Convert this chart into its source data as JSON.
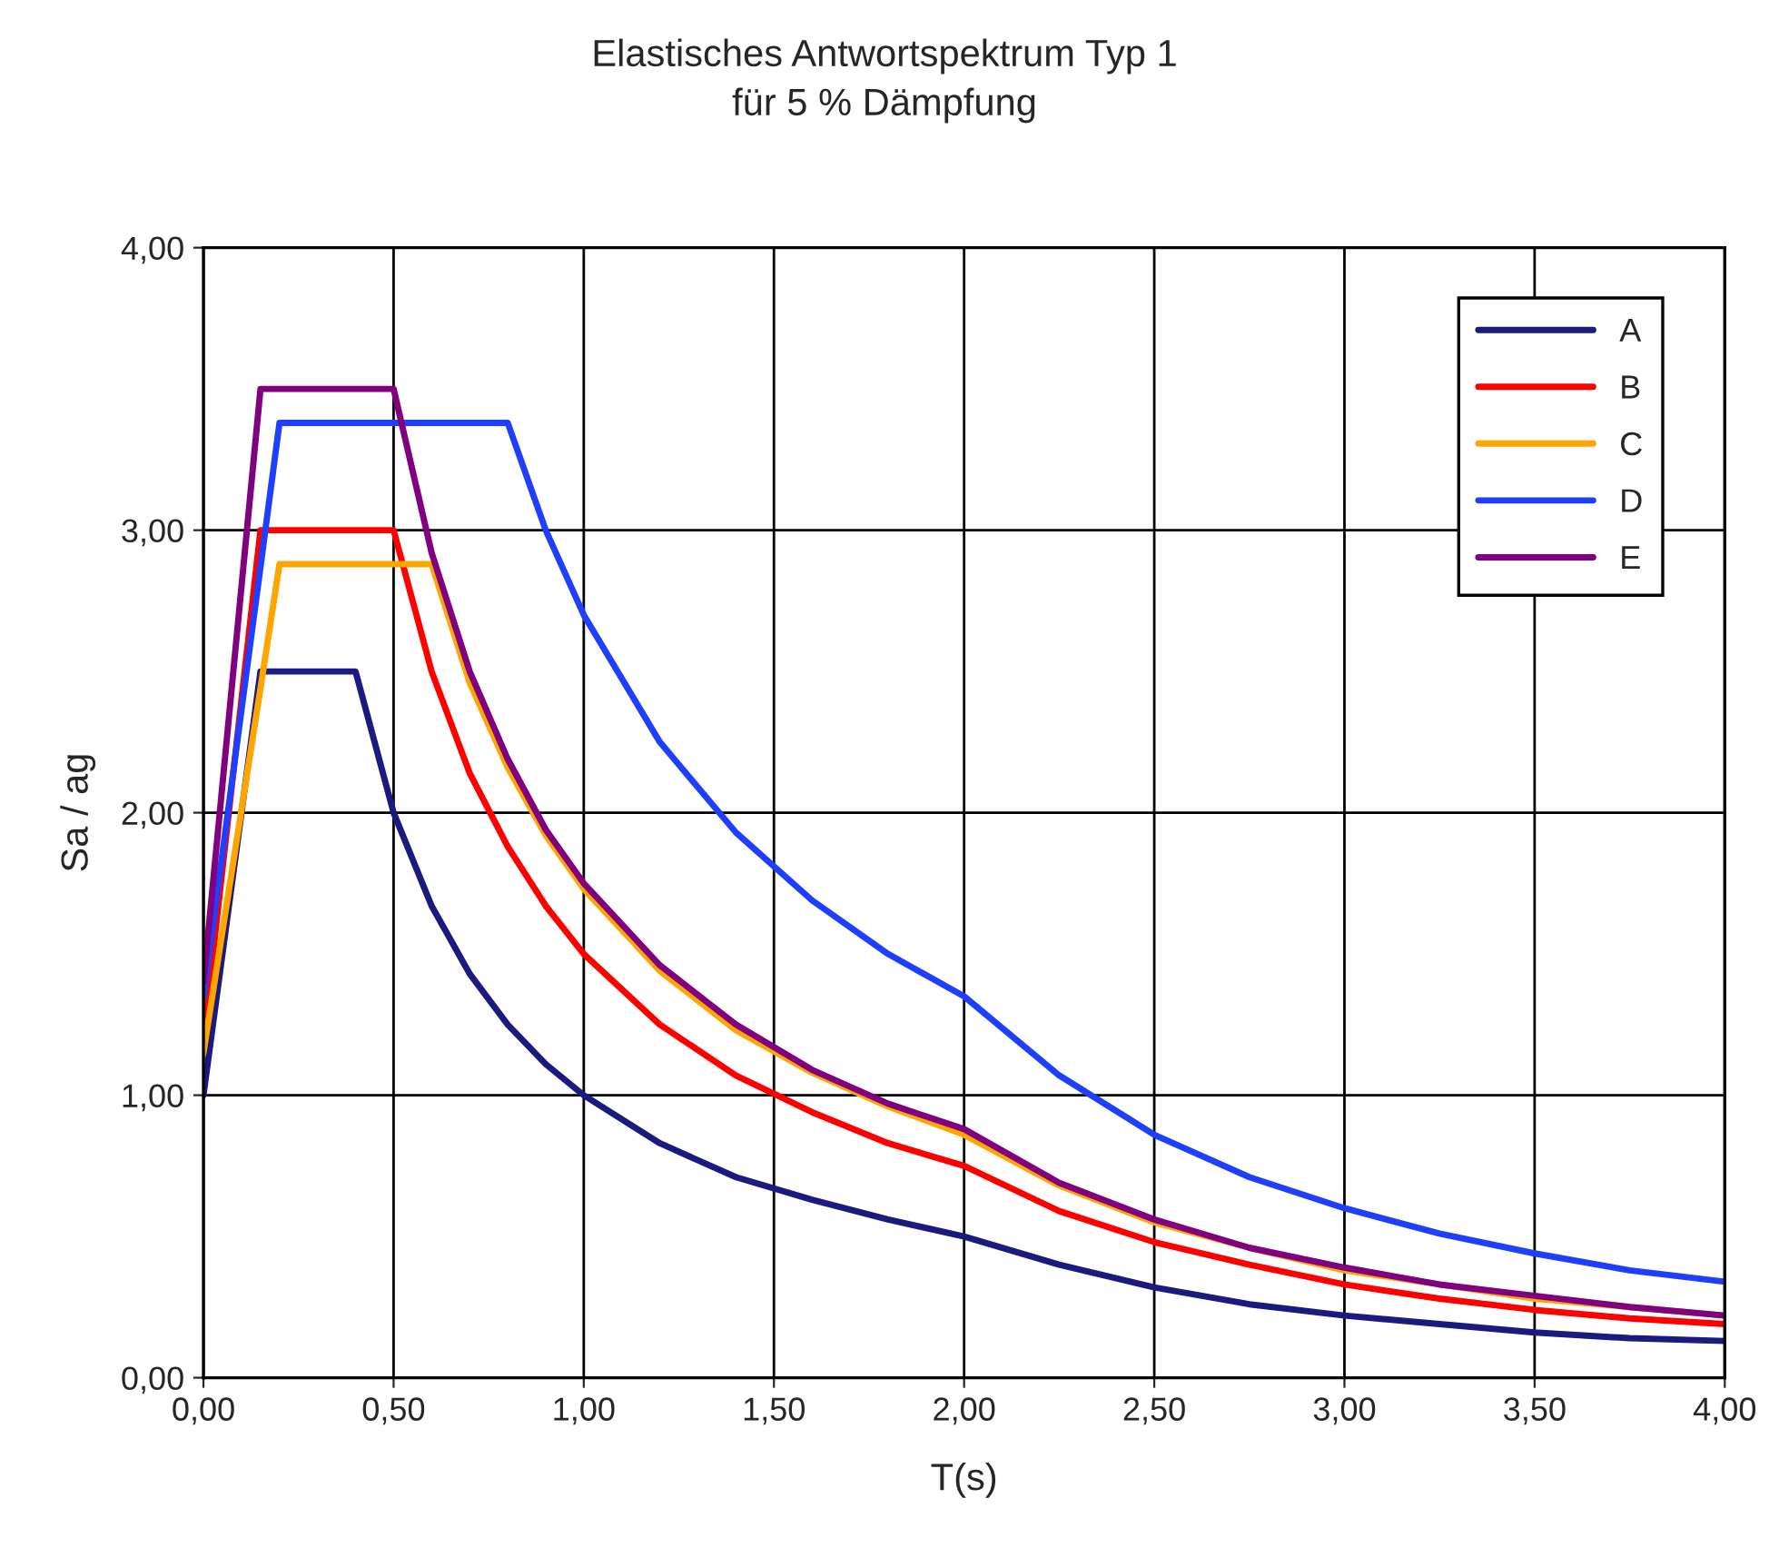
{
  "chart_data": {
    "type": "line",
    "title": "Elastisches Antwortspektrum Typ 1\nfür 5 % Dämpfung",
    "xlabel": "T(s)",
    "ylabel": "Sa / ag",
    "x": [
      0,
      0.15,
      0.2,
      0.4,
      0.5,
      0.6,
      0.7,
      0.8,
      0.9,
      1.0,
      1.2,
      1.4,
      1.6,
      1.8,
      2.0,
      2.25,
      2.5,
      2.75,
      3.0,
      3.25,
      3.5,
      3.75,
      4.0
    ],
    "series": [
      {
        "name": "A",
        "color": "#1a1a80",
        "values": [
          1.0,
          2.5,
          2.5,
          2.5,
          2.0,
          1.67,
          1.43,
          1.25,
          1.11,
          1.0,
          0.83,
          0.71,
          0.63,
          0.56,
          0.5,
          0.4,
          0.32,
          0.26,
          0.22,
          0.19,
          0.16,
          0.14,
          0.13
        ]
      },
      {
        "name": "B",
        "color": "#ff0000",
        "values": [
          1.2,
          3.0,
          3.0,
          3.0,
          3.0,
          2.5,
          2.14,
          1.88,
          1.67,
          1.5,
          1.25,
          1.07,
          0.94,
          0.83,
          0.75,
          0.59,
          0.48,
          0.4,
          0.33,
          0.28,
          0.24,
          0.21,
          0.19
        ]
      },
      {
        "name": "C",
        "color": "#ffa500",
        "values": [
          1.15,
          2.44,
          2.88,
          2.88,
          2.88,
          2.88,
          2.46,
          2.16,
          1.92,
          1.73,
          1.44,
          1.23,
          1.08,
          0.96,
          0.86,
          0.68,
          0.55,
          0.46,
          0.38,
          0.33,
          0.28,
          0.25,
          0.22
        ]
      },
      {
        "name": "D",
        "color": "#1f3fff",
        "values": [
          1.35,
          2.87,
          3.38,
          3.38,
          3.38,
          3.38,
          3.38,
          3.38,
          3.0,
          2.7,
          2.25,
          1.93,
          1.69,
          1.5,
          1.35,
          1.07,
          0.86,
          0.71,
          0.6,
          0.51,
          0.44,
          0.38,
          0.34
        ]
      },
      {
        "name": "E",
        "color": "#800080",
        "values": [
          1.4,
          3.5,
          3.5,
          3.5,
          3.5,
          2.92,
          2.5,
          2.19,
          1.94,
          1.75,
          1.46,
          1.25,
          1.09,
          0.97,
          0.88,
          0.69,
          0.56,
          0.46,
          0.39,
          0.33,
          0.29,
          0.25,
          0.22
        ]
      }
    ],
    "xlim": [
      0,
      4
    ],
    "ylim": [
      0,
      4
    ],
    "xticks": [
      {
        "value": 0,
        "label": "0,00"
      },
      {
        "value": 0.5,
        "label": "0,50"
      },
      {
        "value": 1,
        "label": "1,00"
      },
      {
        "value": 1.5,
        "label": "1,50"
      },
      {
        "value": 2,
        "label": "2,00"
      },
      {
        "value": 2.5,
        "label": "2,50"
      },
      {
        "value": 3,
        "label": "3,00"
      },
      {
        "value": 3.5,
        "label": "3,50"
      },
      {
        "value": 4,
        "label": "4,00"
      }
    ],
    "yticks": [
      {
        "value": 0,
        "label": "0,00"
      },
      {
        "value": 1,
        "label": "1,00"
      },
      {
        "value": 2,
        "label": "2,00"
      },
      {
        "value": 3,
        "label": "3,00"
      },
      {
        "value": 4,
        "label": "4,00"
      }
    ],
    "grid": true,
    "legend": "top right",
    "marker": "none",
    "line_style": "solid"
  }
}
